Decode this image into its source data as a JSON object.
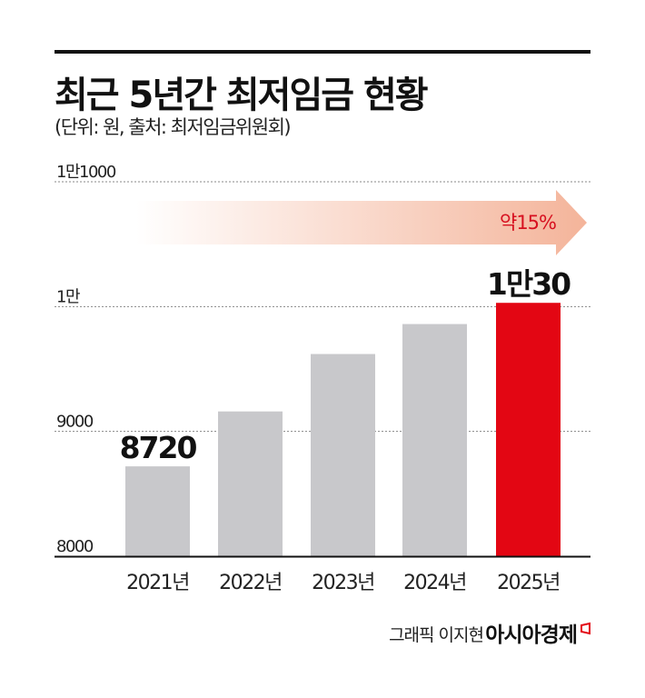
{
  "chart_data": {
    "type": "bar",
    "title": "최근 5년간 최저임금 현황",
    "subtitle": "(단위: 원, 출처: 최저임금위원회)",
    "categories": [
      "2021년",
      "2022년",
      "2023년",
      "2024년",
      "2025년"
    ],
    "values": [
      8720,
      9160,
      9620,
      9860,
      10030
    ],
    "data_labels": {
      "0": "8720",
      "4": "1만30"
    },
    "ylim": [
      8000,
      11000
    ],
    "yticks": [
      8000,
      9000,
      10000,
      11000
    ],
    "ytick_labels": [
      "8000",
      "9000",
      "1만",
      "1만1000"
    ],
    "grid": "dotted horizontal",
    "colors": {
      "bar": "#c8c8cb",
      "highlight": "#e30613",
      "arrow_start": "#ffffff",
      "arrow_end": "#f4b49a",
      "note": "#d7101f"
    },
    "highlight_index": 4,
    "annotation": "약15%"
  },
  "footer": {
    "credit": "그래픽 이지현",
    "brand": "아시아경제"
  }
}
